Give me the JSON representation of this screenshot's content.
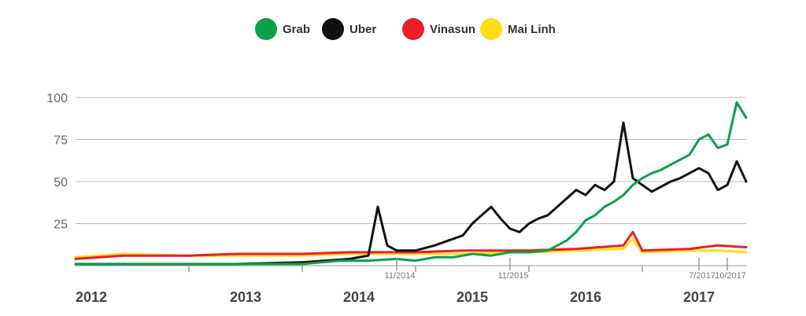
{
  "chart_data": {
    "type": "line",
    "legend_position": "top-center",
    "grid": true,
    "ylim": [
      0,
      100
    ],
    "y_ticks": [
      "25",
      "50",
      "75",
      "100"
    ],
    "x_range": [
      "2012-01",
      "2017-12"
    ],
    "year_labels": [
      "2012",
      "2013",
      "2014",
      "2015",
      "2016",
      "2017"
    ],
    "date_markers": [
      "11/2014",
      "11/2015",
      "7/2017",
      "10/2017"
    ],
    "series": [
      {
        "name": "Grab",
        "color": "#0aa04a",
        "points": [
          [
            "2012-01",
            1
          ],
          [
            "2012-06",
            1
          ],
          [
            "2013-01",
            1
          ],
          [
            "2013-06",
            1
          ],
          [
            "2014-01",
            1
          ],
          [
            "2014-03",
            2
          ],
          [
            "2014-05",
            3
          ],
          [
            "2014-08",
            3
          ],
          [
            "2014-11",
            4
          ],
          [
            "2015-01",
            3
          ],
          [
            "2015-03",
            5
          ],
          [
            "2015-05",
            5
          ],
          [
            "2015-07",
            7
          ],
          [
            "2015-09",
            6
          ],
          [
            "2015-11",
            8
          ],
          [
            "2016-01",
            8
          ],
          [
            "2016-03",
            9
          ],
          [
            "2016-04",
            12
          ],
          [
            "2016-05",
            15
          ],
          [
            "2016-06",
            20
          ],
          [
            "2016-07",
            27
          ],
          [
            "2016-08",
            30
          ],
          [
            "2016-09",
            35
          ],
          [
            "2016-10",
            38
          ],
          [
            "2016-11",
            42
          ],
          [
            "2016-12",
            48
          ],
          [
            "2017-01",
            52
          ],
          [
            "2017-02",
            55
          ],
          [
            "2017-03",
            57
          ],
          [
            "2017-04",
            60
          ],
          [
            "2017-05",
            63
          ],
          [
            "2017-06",
            66
          ],
          [
            "2017-07",
            75
          ],
          [
            "2017-08",
            78
          ],
          [
            "2017-09",
            70
          ],
          [
            "2017-10",
            72
          ],
          [
            "2017-11",
            97
          ],
          [
            "2017-12",
            88
          ]
        ]
      },
      {
        "name": "Uber",
        "color": "#111111",
        "points": [
          [
            "2012-01",
            1
          ],
          [
            "2012-06",
            1
          ],
          [
            "2013-01",
            1
          ],
          [
            "2013-06",
            1
          ],
          [
            "2014-01",
            2
          ],
          [
            "2014-06",
            4
          ],
          [
            "2014-08",
            6
          ],
          [
            "2014-09",
            35
          ],
          [
            "2014-10",
            12
          ],
          [
            "2014-11",
            9
          ],
          [
            "2015-01",
            9
          ],
          [
            "2015-03",
            12
          ],
          [
            "2015-04",
            14
          ],
          [
            "2015-05",
            16
          ],
          [
            "2015-06",
            18
          ],
          [
            "2015-07",
            25
          ],
          [
            "2015-08",
            30
          ],
          [
            "2015-09",
            35
          ],
          [
            "2015-10",
            28
          ],
          [
            "2015-11",
            22
          ],
          [
            "2015-12",
            20
          ],
          [
            "2016-01",
            25
          ],
          [
            "2016-02",
            28
          ],
          [
            "2016-03",
            30
          ],
          [
            "2016-04",
            35
          ],
          [
            "2016-05",
            40
          ],
          [
            "2016-06",
            45
          ],
          [
            "2016-07",
            42
          ],
          [
            "2016-08",
            48
          ],
          [
            "2016-09",
            45
          ],
          [
            "2016-10",
            50
          ],
          [
            "2016-11",
            85
          ],
          [
            "2016-12",
            52
          ],
          [
            "2017-01",
            48
          ],
          [
            "2017-02",
            44
          ],
          [
            "2017-03",
            47
          ],
          [
            "2017-04",
            50
          ],
          [
            "2017-05",
            52
          ],
          [
            "2017-06",
            55
          ],
          [
            "2017-07",
            58
          ],
          [
            "2017-08",
            55
          ],
          [
            "2017-09",
            45
          ],
          [
            "2017-10",
            48
          ],
          [
            "2017-11",
            62
          ],
          [
            "2017-12",
            50
          ]
        ]
      },
      {
        "name": "Vinasun",
        "color": "#e8202a",
        "points": [
          [
            "2012-01",
            4
          ],
          [
            "2012-06",
            6
          ],
          [
            "2013-01",
            6
          ],
          [
            "2013-06",
            7
          ],
          [
            "2014-01",
            7
          ],
          [
            "2014-06",
            8
          ],
          [
            "2014-11",
            8
          ],
          [
            "2015-01",
            8
          ],
          [
            "2015-06",
            9
          ],
          [
            "2015-11",
            9
          ],
          [
            "2016-01",
            9
          ],
          [
            "2016-06",
            10
          ],
          [
            "2016-11",
            12
          ],
          [
            "2016-12",
            20
          ],
          [
            "2017-01",
            9
          ],
          [
            "2017-06",
            10
          ],
          [
            "2017-09",
            12
          ],
          [
            "2017-12",
            11
          ]
        ]
      },
      {
        "name": "Mai Linh",
        "color": "#ffde17",
        "points": [
          [
            "2012-01",
            5
          ],
          [
            "2012-06",
            7
          ],
          [
            "2013-01",
            6
          ],
          [
            "2013-06",
            6
          ],
          [
            "2014-01",
            6
          ],
          [
            "2014-06",
            7
          ],
          [
            "2014-11",
            7
          ],
          [
            "2015-01",
            7
          ],
          [
            "2015-06",
            7
          ],
          [
            "2015-11",
            8
          ],
          [
            "2016-01",
            8
          ],
          [
            "2016-06",
            9
          ],
          [
            "2016-11",
            10
          ],
          [
            "2016-12",
            16
          ],
          [
            "2017-01",
            8
          ],
          [
            "2017-06",
            9
          ],
          [
            "2017-09",
            9
          ],
          [
            "2017-12",
            8
          ]
        ]
      }
    ]
  }
}
